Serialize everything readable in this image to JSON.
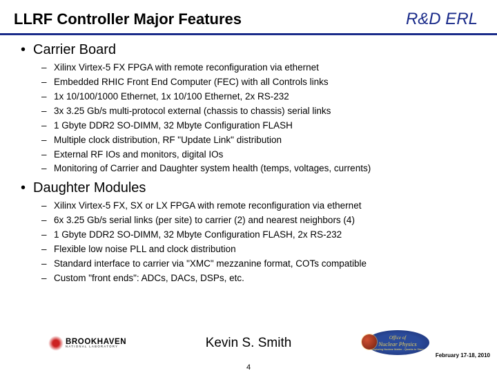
{
  "header": {
    "title": "LLRF Controller Major Features",
    "subtitle": "R&D ERL"
  },
  "sections": [
    {
      "heading": "Carrier Board",
      "items": [
        "Xilinx Virtex-5 FX FPGA with remote reconfiguration via ethernet",
        "Embedded RHIC Front End Computer (FEC) with all Controls links",
        "1x 10/100/1000 Ethernet, 1x 10/100 Ethernet, 2x RS-232",
        "3x 3.25 Gb/s multi-protocol external (chassis to chassis) serial links",
        "1 Gbyte DDR2 SO-DIMM, 32 Mbyte Configuration FLASH",
        "Multiple clock distribution, RF \"Update Link\" distribution",
        "External RF IOs and monitors, digital IOs",
        "Monitoring of Carrier and Daughter system health (temps, voltages, currents)"
      ]
    },
    {
      "heading": "Daughter Modules",
      "items": [
        "Xilinx Virtex-5 FX, SX or LX FPGA with remote reconfiguration via ethernet",
        "6x 3.25 Gb/s serial links (per site) to carrier (2) and nearest neighbors (4)",
        "1 Gbyte DDR2 SO-DIMM, 32 Mbyte Configuration FLASH, 2x RS-232",
        "Flexible low noise PLL and clock distribution",
        "Standard interface to carrier via \"XMC\" mezzanine format, COTs compatible",
        "Custom \"front ends\": ADCs, DACs, DSPs, etc."
      ]
    }
  ],
  "footer": {
    "author": "Kevin S. Smith",
    "date": "February 17-18, 2010",
    "page": "4",
    "logo_left": {
      "line1": "BROOKHAVEN",
      "line2": "NATIONAL LABORATORY"
    },
    "logo_right": {
      "line1": "Office of",
      "line2": "Nuclear Physics",
      "tag": "Exploring Nuclear Matter - Quarks to Stars"
    }
  },
  "colors": {
    "accent": "#1a2b8a",
    "text": "#000000",
    "bg": "#ffffff"
  }
}
